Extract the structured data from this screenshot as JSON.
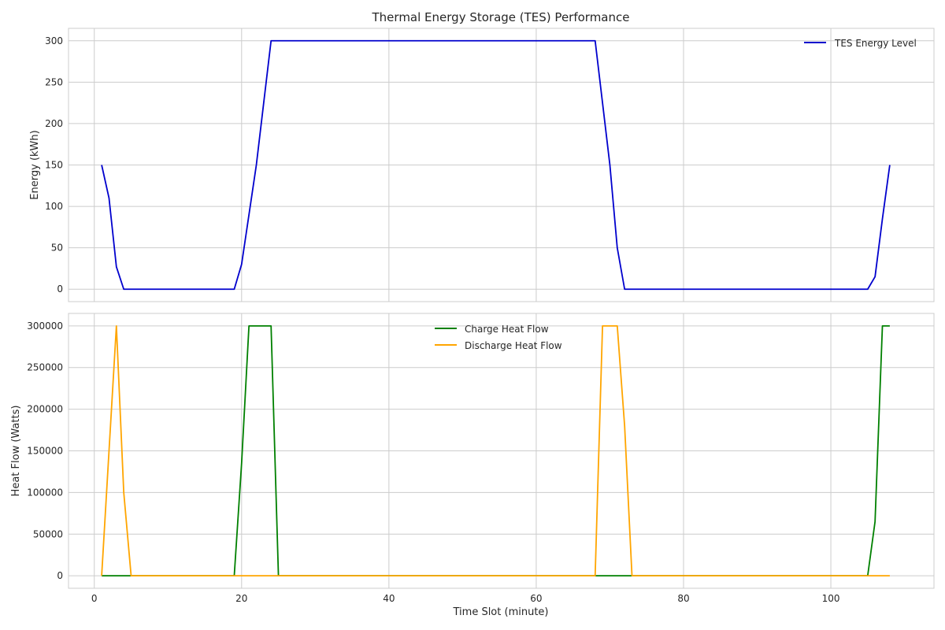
{
  "chart_data": [
    {
      "type": "line",
      "title": "Thermal Energy Storage (TES) Performance",
      "xlabel": "",
      "ylabel": "Energy (kWh)",
      "xlim": [
        -3.5,
        114
      ],
      "ylim": [
        -15,
        315
      ],
      "xticks": [
        0,
        20,
        40,
        60,
        80,
        100
      ],
      "xtick_labels": [
        "",
        "",
        "",
        "",
        "",
        ""
      ],
      "yticks": [
        0,
        50,
        100,
        150,
        200,
        250,
        300
      ],
      "ytick_labels": [
        "0",
        "50",
        "100",
        "150",
        "200",
        "250",
        "300"
      ],
      "grid": true,
      "legend_position": "top-right",
      "series": [
        {
          "name": "TES Energy Level",
          "color": "#0000cd",
          "points": [
            [
              1,
              150
            ],
            [
              2,
              110
            ],
            [
              3,
              27
            ],
            [
              4,
              0
            ],
            [
              19,
              0
            ],
            [
              20,
              30
            ],
            [
              22,
              150
            ],
            [
              23,
              225
            ],
            [
              24,
              300
            ],
            [
              68,
              300
            ],
            [
              69,
              225
            ],
            [
              70,
              150
            ],
            [
              71,
              50
            ],
            [
              72,
              0
            ],
            [
              105,
              0
            ],
            [
              106,
              15
            ],
            [
              107,
              85
            ],
            [
              108,
              150
            ]
          ]
        }
      ]
    },
    {
      "type": "line",
      "title": "",
      "xlabel": "Time Slot (minute)",
      "ylabel": "Heat Flow (Watts)",
      "xlim": [
        -3.5,
        114
      ],
      "ylim": [
        -15000,
        315000
      ],
      "xticks": [
        0,
        20,
        40,
        60,
        80,
        100
      ],
      "xtick_labels": [
        "0",
        "20",
        "40",
        "60",
        "80",
        "100"
      ],
      "yticks": [
        0,
        50000,
        100000,
        150000,
        200000,
        250000,
        300000
      ],
      "ytick_labels": [
        "0",
        "50000",
        "100000",
        "150000",
        "200000",
        "250000",
        "300000"
      ],
      "grid": true,
      "legend_position": "top-center",
      "series": [
        {
          "name": "Charge Heat Flow",
          "color": "#008000",
          "points": [
            [
              1,
              0
            ],
            [
              19,
              0
            ],
            [
              20,
              135000
            ],
            [
              21,
              300000
            ],
            [
              24,
              300000
            ],
            [
              25,
              0
            ],
            [
              105,
              0
            ],
            [
              106,
              65000
            ],
            [
              107,
              300000
            ],
            [
              108,
              300000
            ]
          ]
        },
        {
          "name": "Discharge Heat Flow",
          "color": "#ffa500",
          "points": [
            [
              1,
              0
            ],
            [
              2,
              150000
            ],
            [
              3,
              300000
            ],
            [
              4,
              100000
            ],
            [
              5,
              0
            ],
            [
              68,
              0
            ],
            [
              69,
              300000
            ],
            [
              71,
              300000
            ],
            [
              72,
              180000
            ],
            [
              73,
              0
            ],
            [
              108,
              0
            ]
          ]
        }
      ]
    }
  ]
}
